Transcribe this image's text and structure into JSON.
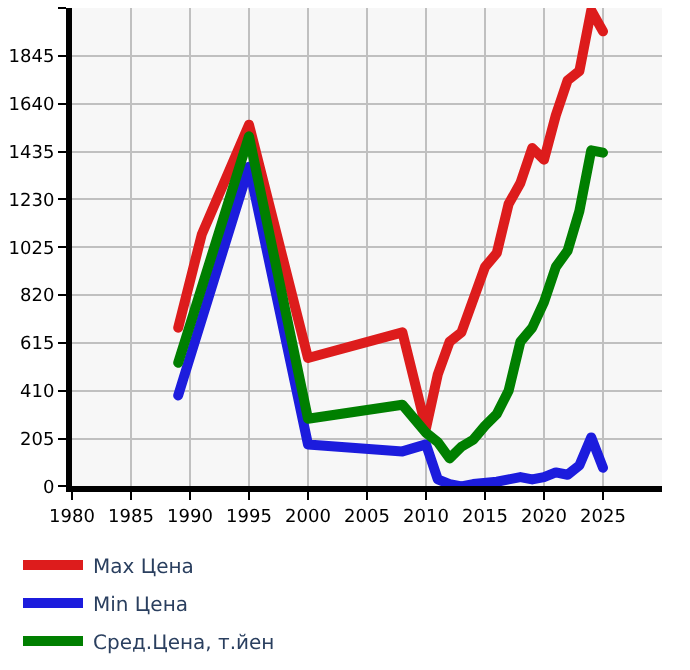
{
  "chart_data": {
    "type": "line",
    "xlim": [
      1980,
      2030
    ],
    "xticks": [
      1980,
      1985,
      1990,
      1995,
      2000,
      2005,
      2010,
      2015,
      2020,
      2025
    ],
    "ylim": [
      0,
      2050
    ],
    "yticks": [
      0,
      205,
      410,
      615,
      820,
      1025,
      1230,
      1435,
      1640,
      1845,
      {
        "value": 2050,
        "label": null
      }
    ],
    "grid": true,
    "legend": "bottom",
    "marker": "none",
    "line_style": "solid",
    "series": [
      {
        "name": "Max Цена",
        "color": "#dd1c1c",
        "x": [
          1989,
          1991,
          1995,
          2000,
          2008,
          2010,
          2011,
          2012,
          2013,
          2015,
          2016,
          2017,
          2018,
          2019,
          2020,
          2021,
          2022,
          2023,
          2024,
          2025
        ],
        "values": [
          680,
          1080,
          1550,
          550,
          660,
          250,
          480,
          620,
          660,
          940,
          1000,
          1210,
          1300,
          1450,
          1400,
          1590,
          1740,
          1780,
          2040,
          1950
        ]
      },
      {
        "name": "Min Цена",
        "color": "#1c1cdd",
        "x": [
          1989,
          1995,
          2000,
          2008,
          2010,
          2011,
          2012,
          2013,
          2014,
          2016,
          2017,
          2018,
          2019,
          2020,
          2021,
          2022,
          2023,
          2024,
          2025
        ],
        "values": [
          390,
          1370,
          180,
          150,
          180,
          30,
          10,
          0,
          10,
          20,
          30,
          40,
          30,
          40,
          60,
          50,
          90,
          210,
          80
        ]
      },
      {
        "name": "Сред.Цена, т.йен",
        "color": "#007f00",
        "x": [
          1989,
          1995,
          2000,
          2008,
          2010,
          2011,
          2012,
          2013,
          2014,
          2015,
          2016,
          2017,
          2018,
          2019,
          2020,
          2021,
          2022,
          2023,
          2024,
          2025
        ],
        "values": [
          530,
          1500,
          290,
          350,
          230,
          190,
          120,
          170,
          200,
          260,
          310,
          410,
          620,
          680,
          790,
          940,
          1010,
          1180,
          1440,
          1430
        ]
      }
    ]
  }
}
